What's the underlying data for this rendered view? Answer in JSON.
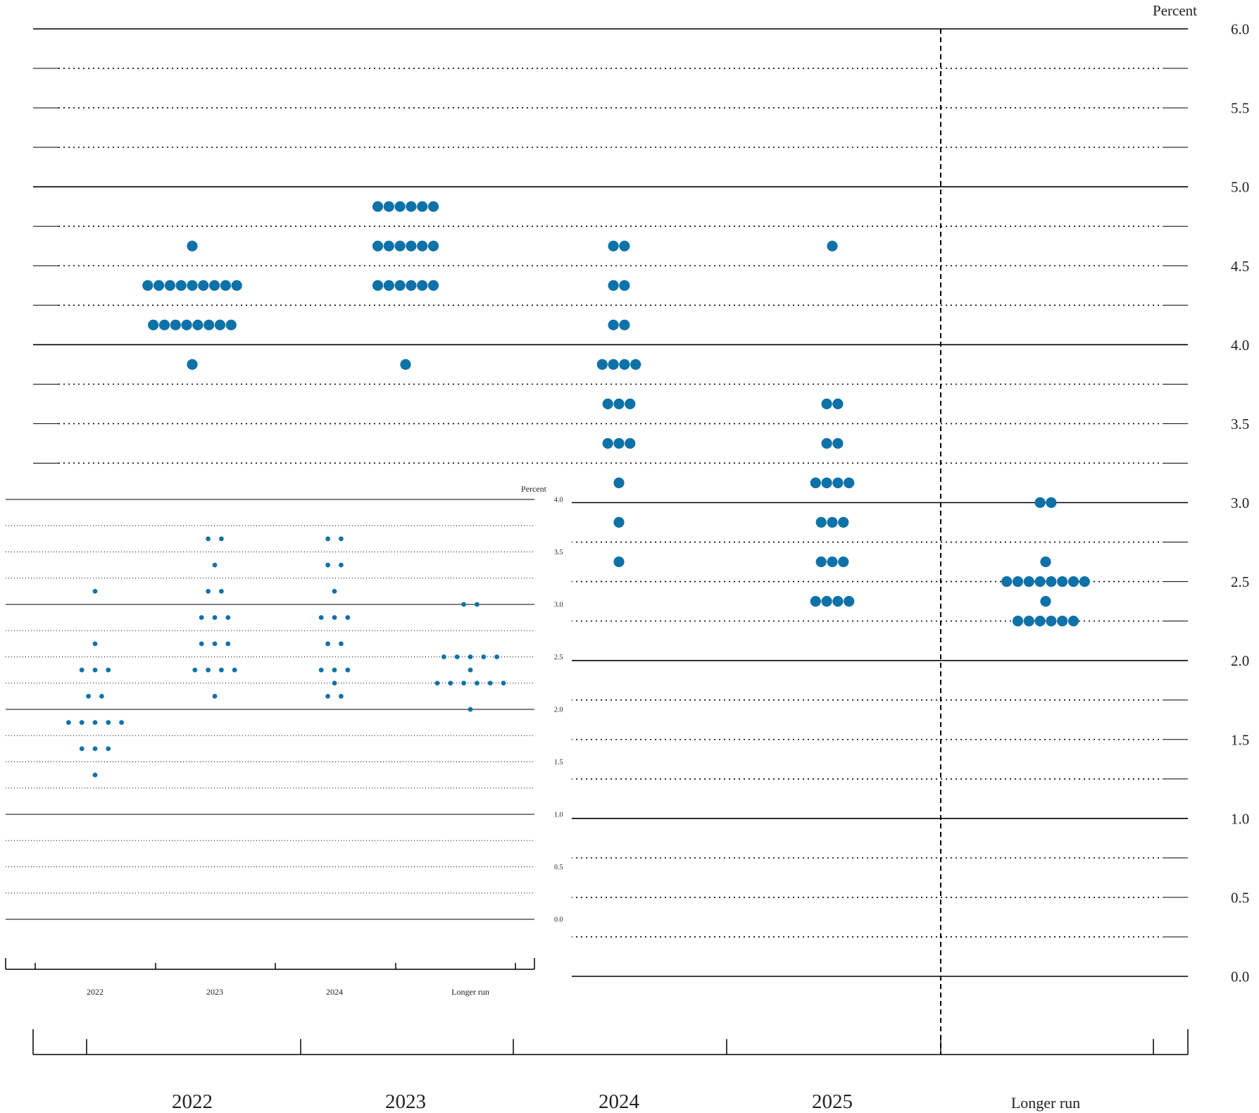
{
  "colors": {
    "dot": "#0e72a8",
    "grid": "#000000"
  },
  "main_chart": {
    "unit_label": "Percent",
    "chart_data": {
      "type": "scatter",
      "title": "",
      "xlabel": "",
      "ylabel": "Percent",
      "categories": [
        "2022",
        "2023",
        "2024",
        "2025",
        "Longer run"
      ],
      "ylim": [
        0.0,
        6.0
      ],
      "y_ticks": [
        "0.0",
        "0.5",
        "1.0",
        "1.5",
        "2.0",
        "2.5",
        "3.0",
        "3.5",
        "4.0",
        "4.5",
        "5.0",
        "5.5",
        "6.0"
      ],
      "grid": true,
      "separator_before": "Longer run",
      "points": [
        {
          "x": "2022",
          "y": 4.625,
          "count": 1
        },
        {
          "x": "2022",
          "y": 4.375,
          "count": 9
        },
        {
          "x": "2022",
          "y": 4.125,
          "count": 8
        },
        {
          "x": "2022",
          "y": 3.875,
          "count": 1
        },
        {
          "x": "2023",
          "y": 4.875,
          "count": 6
        },
        {
          "x": "2023",
          "y": 4.625,
          "count": 6
        },
        {
          "x": "2023",
          "y": 4.375,
          "count": 6
        },
        {
          "x": "2023",
          "y": 3.875,
          "count": 1
        },
        {
          "x": "2024",
          "y": 4.625,
          "count": 2
        },
        {
          "x": "2024",
          "y": 4.375,
          "count": 2
        },
        {
          "x": "2024",
          "y": 4.125,
          "count": 2
        },
        {
          "x": "2024",
          "y": 3.875,
          "count": 4
        },
        {
          "x": "2024",
          "y": 3.625,
          "count": 3
        },
        {
          "x": "2024",
          "y": 3.375,
          "count": 3
        },
        {
          "x": "2024",
          "y": 3.125,
          "count": 1
        },
        {
          "x": "2024",
          "y": 2.875,
          "count": 1
        },
        {
          "x": "2024",
          "y": 2.625,
          "count": 1
        },
        {
          "x": "2025",
          "y": 4.625,
          "count": 1
        },
        {
          "x": "2025",
          "y": 3.625,
          "count": 2
        },
        {
          "x": "2025",
          "y": 3.375,
          "count": 2
        },
        {
          "x": "2025",
          "y": 3.125,
          "count": 4
        },
        {
          "x": "2025",
          "y": 2.875,
          "count": 3
        },
        {
          "x": "2025",
          "y": 2.625,
          "count": 3
        },
        {
          "x": "2025",
          "y": 2.375,
          "count": 4
        },
        {
          "x": "Longer run",
          "y": 3.0,
          "count": 2
        },
        {
          "x": "Longer run",
          "y": 2.625,
          "count": 1
        },
        {
          "x": "Longer run",
          "y": 2.5,
          "count": 8
        },
        {
          "x": "Longer run",
          "y": 2.375,
          "count": 1
        },
        {
          "x": "Longer run",
          "y": 2.25,
          "count": 6
        }
      ]
    }
  },
  "inset_chart": {
    "unit_label": "Percent",
    "chart_data": {
      "type": "scatter",
      "title": "",
      "xlabel": "",
      "ylabel": "Percent",
      "categories": [
        "2022",
        "2023",
        "2024",
        "Longer run"
      ],
      "ylim": [
        0.0,
        4.0
      ],
      "y_ticks": [
        "0.0",
        "0.5",
        "1.0",
        "1.5",
        "2.0",
        "2.5",
        "3.0",
        "3.5",
        "4.0"
      ],
      "grid": true,
      "points": [
        {
          "x": "2022",
          "y": 3.125,
          "count": 1
        },
        {
          "x": "2022",
          "y": 2.625,
          "count": 1
        },
        {
          "x": "2022",
          "y": 2.375,
          "count": 3
        },
        {
          "x": "2022",
          "y": 2.125,
          "count": 2
        },
        {
          "x": "2022",
          "y": 1.875,
          "count": 5
        },
        {
          "x": "2022",
          "y": 1.625,
          "count": 3
        },
        {
          "x": "2022",
          "y": 1.375,
          "count": 1
        },
        {
          "x": "2023",
          "y": 3.625,
          "count": 2
        },
        {
          "x": "2023",
          "y": 3.375,
          "count": 1
        },
        {
          "x": "2023",
          "y": 3.125,
          "count": 2
        },
        {
          "x": "2023",
          "y": 2.875,
          "count": 3
        },
        {
          "x": "2023",
          "y": 2.625,
          "count": 3
        },
        {
          "x": "2023",
          "y": 2.375,
          "count": 4
        },
        {
          "x": "2023",
          "y": 2.125,
          "count": 1
        },
        {
          "x": "2024",
          "y": 3.625,
          "count": 2
        },
        {
          "x": "2024",
          "y": 3.375,
          "count": 2
        },
        {
          "x": "2024",
          "y": 3.125,
          "count": 1
        },
        {
          "x": "2024",
          "y": 2.875,
          "count": 3
        },
        {
          "x": "2024",
          "y": 2.625,
          "count": 2
        },
        {
          "x": "2024",
          "y": 2.375,
          "count": 3
        },
        {
          "x": "2024",
          "y": 2.25,
          "count": 1
        },
        {
          "x": "2024",
          "y": 2.125,
          "count": 2
        },
        {
          "x": "Longer run",
          "y": 3.0,
          "count": 2
        },
        {
          "x": "Longer run",
          "y": 2.5,
          "count": 5
        },
        {
          "x": "Longer run",
          "y": 2.375,
          "count": 1
        },
        {
          "x": "Longer run",
          "y": 2.25,
          "count": 6
        },
        {
          "x": "Longer run",
          "y": 2.0,
          "count": 1
        }
      ]
    }
  }
}
